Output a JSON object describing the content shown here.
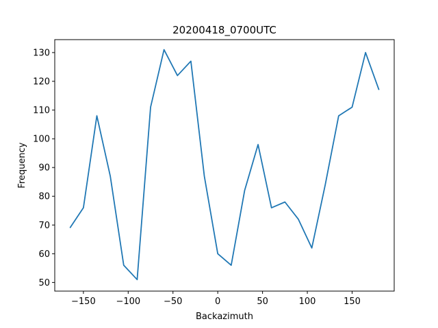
{
  "chart_data": {
    "type": "line",
    "title": "20200418_0700UTC",
    "xlabel": "Backazimuth",
    "ylabel": "Frequency",
    "xlim": [
      -182,
      197
    ],
    "ylim": [
      47,
      134.5
    ],
    "xticks": [
      -150,
      -100,
      -50,
      0,
      50,
      100,
      150
    ],
    "yticks": [
      50,
      60,
      70,
      80,
      90,
      100,
      110,
      120,
      130
    ],
    "grid": false,
    "series": [
      {
        "color": "#1f77b4",
        "x": [
          -165,
          -150,
          -135,
          -120,
          -105,
          -90,
          -75,
          -60,
          -45,
          -30,
          -15,
          0,
          15,
          30,
          45,
          60,
          75,
          90,
          105,
          120,
          135,
          150,
          165,
          180
        ],
        "y": [
          69,
          76,
          108,
          87,
          56,
          51,
          111,
          131,
          122,
          127,
          87,
          60,
          56,
          82,
          98,
          76,
          78,
          72,
          62,
          84,
          108,
          111,
          130,
          117
        ]
      }
    ]
  }
}
